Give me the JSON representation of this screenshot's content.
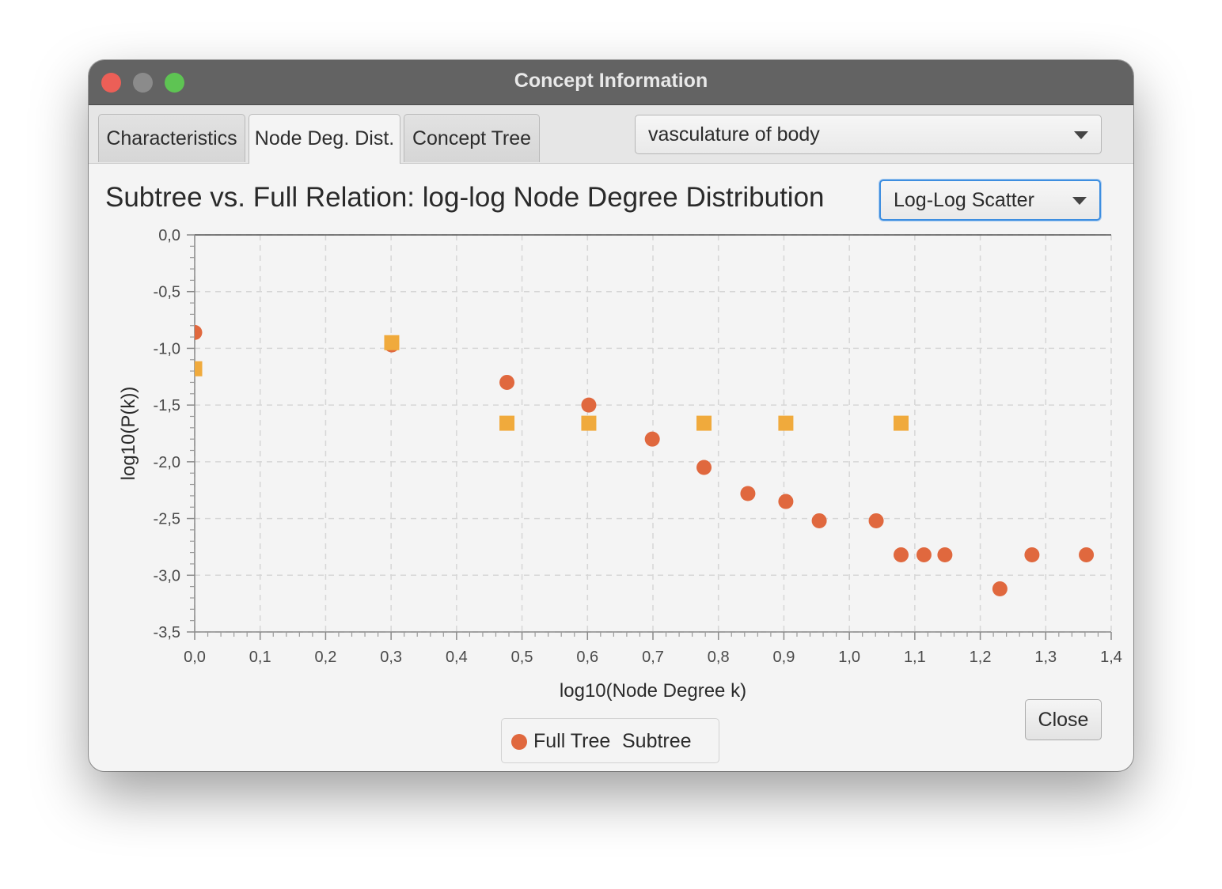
{
  "window": {
    "title": "Concept Information"
  },
  "tabs": [
    {
      "label": "Characteristics"
    },
    {
      "label": "Node Deg. Dist."
    },
    {
      "label": "Concept Tree"
    }
  ],
  "concept_select": {
    "value": "vasculature of body"
  },
  "chart_type_select": {
    "value": "Log-Log Scatter"
  },
  "close_button": {
    "label": "Close"
  },
  "colors": {
    "full_tree": "#e0683e",
    "subtree": "#f0aa3c"
  },
  "chart_data": {
    "type": "scatter",
    "title": "Subtree vs. Full Relation: log-log Node Degree Distribution",
    "xlabel": "log10(Node Degree k)",
    "ylabel": "log10(P(k))",
    "xlim": [
      0.0,
      1.4
    ],
    "ylim": [
      -3.5,
      0.0
    ],
    "x_ticks": [
      "0,0",
      "0,1",
      "0,2",
      "0,3",
      "0,4",
      "0,5",
      "0,6",
      "0,7",
      "0,8",
      "0,9",
      "1,0",
      "1,1",
      "1,2",
      "1,3",
      "1,4"
    ],
    "y_ticks": [
      "0,0",
      "-0,5",
      "-1,0",
      "-1,5",
      "-2,0",
      "-2,5",
      "-3,0",
      "-3,5"
    ],
    "grid": true,
    "legend_position": "bottom-center",
    "series": [
      {
        "name": "Full Tree",
        "marker": "circle",
        "points": [
          [
            0.0,
            -0.86
          ],
          [
            0.301,
            -0.97
          ],
          [
            0.477,
            -1.3
          ],
          [
            0.602,
            -1.5
          ],
          [
            0.699,
            -1.8
          ],
          [
            0.778,
            -2.05
          ],
          [
            0.845,
            -2.28
          ],
          [
            0.903,
            -2.35
          ],
          [
            0.954,
            -2.52
          ],
          [
            1.041,
            -2.52
          ],
          [
            1.079,
            -2.82
          ],
          [
            1.114,
            -2.82
          ],
          [
            1.146,
            -2.82
          ],
          [
            1.23,
            -3.12
          ],
          [
            1.279,
            -2.82
          ],
          [
            1.362,
            -2.82
          ]
        ]
      },
      {
        "name": "Subtree",
        "marker": "square",
        "points": [
          [
            0.0,
            -1.18
          ],
          [
            0.301,
            -0.95
          ],
          [
            0.477,
            -1.66
          ],
          [
            0.602,
            -1.66
          ],
          [
            0.778,
            -1.66
          ],
          [
            0.903,
            -1.66
          ],
          [
            1.079,
            -1.66
          ]
        ]
      }
    ]
  }
}
